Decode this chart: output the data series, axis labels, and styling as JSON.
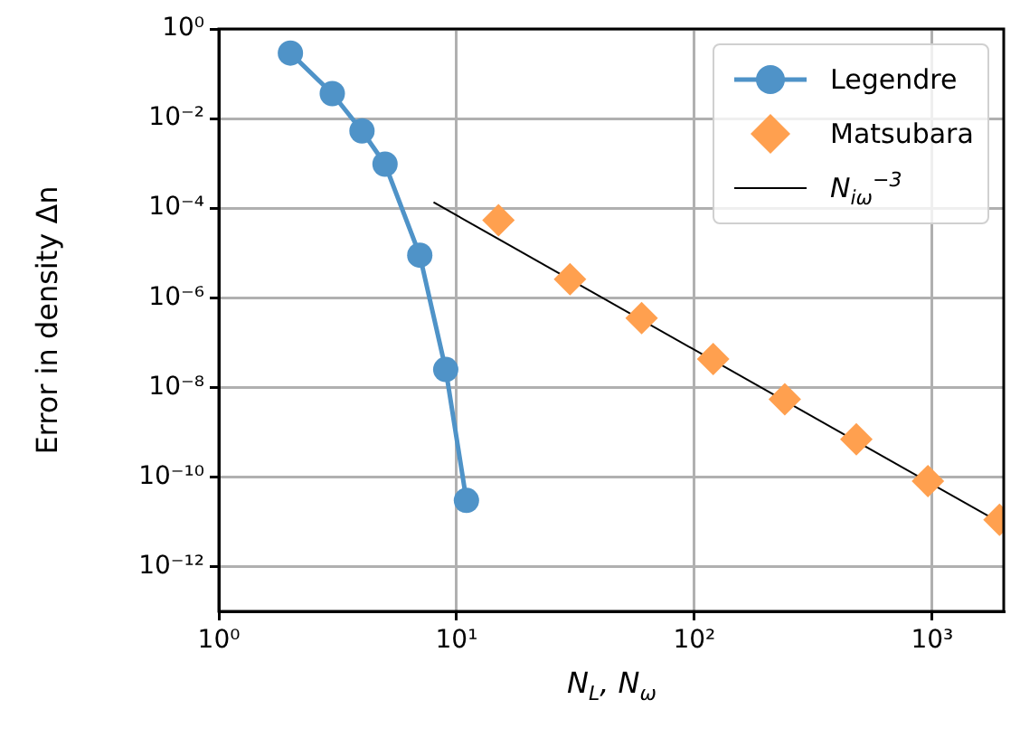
{
  "chart_data": {
    "type": "line",
    "xlabel": "N$_{L}$, N$_{ω}$",
    "ylabel": "Error in density Δn",
    "log": "xy",
    "xlim": [
      1,
      2000
    ],
    "ylim": [
      1e-13,
      1
    ],
    "xticks": [
      {
        "value": 1,
        "label": "10⁰"
      },
      {
        "value": 10,
        "label": "10¹"
      },
      {
        "value": 100,
        "label": "10²"
      },
      {
        "value": 1000,
        "label": "10³"
      }
    ],
    "yticks": [
      {
        "value": 1,
        "label": "10⁰"
      },
      {
        "value": 0.01,
        "label": "10⁻²"
      },
      {
        "value": 0.0001,
        "label": "10⁻⁴"
      },
      {
        "value": 1e-06,
        "label": "10⁻⁶"
      },
      {
        "value": 1e-08,
        "label": "10⁻⁸"
      },
      {
        "value": 1e-10,
        "label": "10⁻¹⁰"
      },
      {
        "value": 1e-12,
        "label": "10⁻¹²"
      }
    ],
    "grid": true,
    "legend": "top right",
    "series": [
      {
        "name": "Legendre",
        "type": "line",
        "marker": "circle",
        "color": "#4f93c8",
        "x": [
          2,
          3,
          4,
          5,
          7,
          9,
          11
        ],
        "values": [
          0.29,
          0.036,
          0.0053,
          0.00096,
          8.9e-06,
          2.5e-08,
          3e-11
        ]
      },
      {
        "name": "Matsubara",
        "type": "scatter",
        "marker": "diamond",
        "color": "#ffa04f",
        "x": [
          15,
          30,
          60,
          120,
          240,
          480,
          960,
          1920
        ],
        "values": [
          5.4e-05,
          2.6e-06,
          3.5e-07,
          4.3e-08,
          5.4e-09,
          6.9e-10,
          8.1e-11,
          1.1e-11
        ]
      },
      {
        "name": "N$_{iω}$$^{−3}$",
        "type": "line",
        "marker": "none",
        "color": "#000000",
        "x": [
          8,
          2000
        ],
        "values": [
          0.000135,
          8.6e-12
        ]
      }
    ]
  }
}
